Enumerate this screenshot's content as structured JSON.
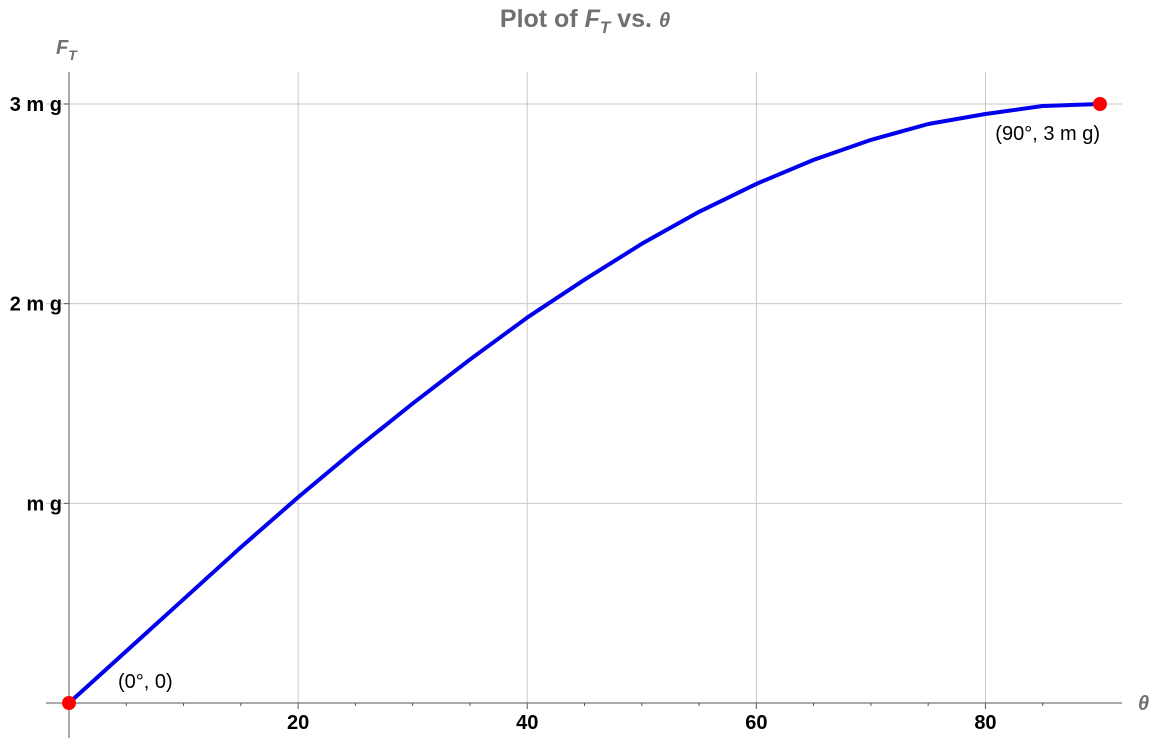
{
  "chart_data": {
    "type": "line",
    "title": {
      "prefix": "Plot of ",
      "var": "F",
      "var_sub": "T",
      "middle": " vs. ",
      "var2": "θ"
    },
    "ylabel": {
      "var": "F",
      "sub": "T"
    },
    "xlabel": "θ",
    "xlim": [
      0,
      90
    ],
    "ylim": [
      0,
      3
    ],
    "grid": true,
    "x_ticks": [
      {
        "value": 20,
        "label": "20"
      },
      {
        "value": 40,
        "label": "40"
      },
      {
        "value": 60,
        "label": "60"
      },
      {
        "value": 80,
        "label": "80"
      }
    ],
    "y_ticks": [
      {
        "value": 1,
        "label": "m g"
      },
      {
        "value": 2,
        "label": "2 m g"
      },
      {
        "value": 3,
        "label": "3 m g"
      }
    ],
    "series": [
      {
        "color": "#0000ee",
        "x": [
          0,
          5,
          10,
          15,
          20,
          25,
          30,
          35,
          40,
          45,
          50,
          55,
          60,
          65,
          70,
          75,
          80,
          85,
          90
        ],
        "y": [
          0,
          0.26,
          0.52,
          0.78,
          1.03,
          1.27,
          1.5,
          1.72,
          1.93,
          2.12,
          2.3,
          2.46,
          2.6,
          2.72,
          2.82,
          2.9,
          2.95,
          2.99,
          3.0
        ]
      }
    ],
    "points": [
      {
        "x": 0,
        "y": 0,
        "label": "(0°, 0)",
        "color": "#ff0000"
      },
      {
        "x": 90,
        "y": 3,
        "label": "(90°, 3 m g)",
        "color": "#ff0000"
      }
    ]
  }
}
